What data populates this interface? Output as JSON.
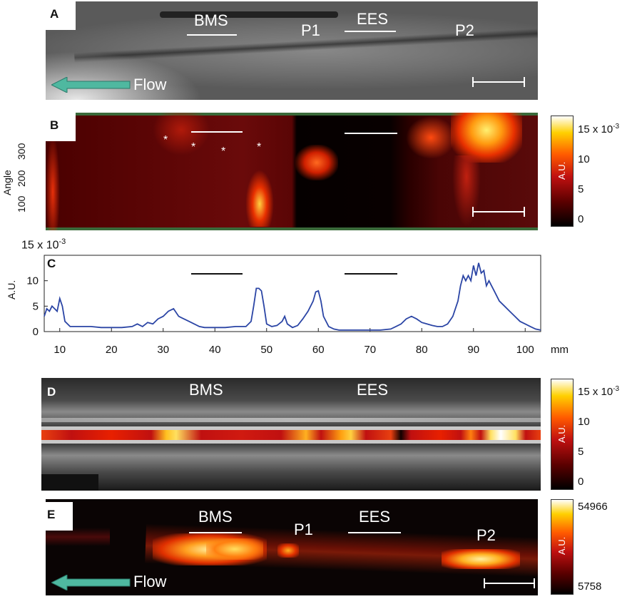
{
  "panels": {
    "a": {
      "letter": "A",
      "bms_label": "BMS",
      "p1_label": "P1",
      "ees_label": "EES",
      "p2_label": "P2",
      "flow_label": "Flow"
    },
    "b": {
      "letter": "B",
      "ylabel": "Angle",
      "yticks": [
        "300",
        "200",
        "100"
      ],
      "asterisk": "*",
      "colorbar": {
        "ticks": [
          "15 x 10",
          "10",
          "5",
          "0"
        ],
        "exponent": "-3",
        "unit": "A.U."
      }
    },
    "c": {
      "letter": "C",
      "ylabel": "A.U.",
      "exponent_label": "15 x 10",
      "exponent_sup": "-3"
    },
    "d": {
      "letter": "D",
      "bms_label": "BMS",
      "ees_label": "EES",
      "colorbar": {
        "ticks": [
          "15 x 10",
          "10",
          "5",
          "0"
        ],
        "exponent": "-3",
        "unit": "A.U."
      }
    },
    "e": {
      "letter": "E",
      "bms_label": "BMS",
      "p1_label": "P1",
      "ees_label": "EES",
      "p2_label": "P2",
      "flow_label": "Flow",
      "colorbar": {
        "ticks": [
          "54966",
          "5758"
        ],
        "unit": "A.U."
      }
    }
  },
  "colors": {
    "line": "#2b45a5",
    "flow_arrow": "#4fb8a0",
    "hot": "#ff5a00"
  },
  "chart_data": {
    "type": "line",
    "title": "",
    "xlabel": "mm",
    "ylabel": "A.U.",
    "xlim": [
      7,
      103
    ],
    "ylim": [
      0,
      15
    ],
    "xticks": [
      10,
      20,
      30,
      40,
      50,
      60,
      70,
      80,
      90,
      100
    ],
    "yticks": [
      0,
      5,
      10,
      15
    ],
    "series": [
      {
        "x": [
          7,
          7.5,
          8,
          8.5,
          9,
          9.5,
          10,
          10.5,
          11,
          12,
          14,
          16,
          18,
          20,
          22,
          24,
          25,
          26,
          27,
          28,
          29,
          30,
          31,
          32,
          33,
          34,
          35,
          36,
          37,
          38,
          40,
          42,
          44,
          46,
          47,
          47.5,
          48,
          48.5,
          49,
          49.5,
          50,
          51,
          52,
          53,
          53.5,
          54,
          55,
          56,
          57,
          58,
          59,
          59.5,
          60,
          60.5,
          61,
          62,
          63,
          64,
          65,
          66,
          68,
          70,
          72,
          74,
          75,
          76,
          77,
          78,
          79,
          80,
          81,
          82,
          83,
          84,
          85,
          86,
          87,
          87.5,
          88,
          88.5,
          89,
          89.5,
          90,
          90.5,
          91,
          91.5,
          92,
          92.5,
          93,
          93.5,
          94,
          95,
          96,
          97,
          98,
          99,
          100,
          101,
          102,
          103
        ],
        "y": [
          3,
          4.5,
          4,
          5,
          4.5,
          4,
          6.5,
          5,
          2,
          1,
          1,
          1,
          0.8,
          0.8,
          0.8,
          1,
          1.5,
          1,
          1.8,
          1.5,
          2.5,
          3,
          4,
          4.5,
          3,
          2.5,
          2,
          1.5,
          1,
          0.8,
          0.8,
          0.8,
          1,
          1,
          2,
          5,
          8.5,
          8.5,
          8,
          5,
          1.5,
          1,
          1.2,
          2,
          3,
          1.5,
          0.8,
          1.2,
          2.5,
          4,
          6,
          7.8,
          8,
          6,
          3,
          1,
          0.5,
          0.3,
          0.3,
          0.3,
          0.3,
          0.3,
          0.3,
          0.5,
          1,
          1.5,
          2.5,
          3,
          2.5,
          1.8,
          1.5,
          1.2,
          1,
          1,
          1.5,
          3,
          6,
          9,
          11,
          10,
          11,
          10,
          13,
          11,
          13.5,
          11.5,
          12,
          9,
          10,
          9,
          8,
          6,
          5,
          4,
          3,
          2,
          1.5,
          1,
          0.5,
          0.3
        ]
      }
    ]
  }
}
